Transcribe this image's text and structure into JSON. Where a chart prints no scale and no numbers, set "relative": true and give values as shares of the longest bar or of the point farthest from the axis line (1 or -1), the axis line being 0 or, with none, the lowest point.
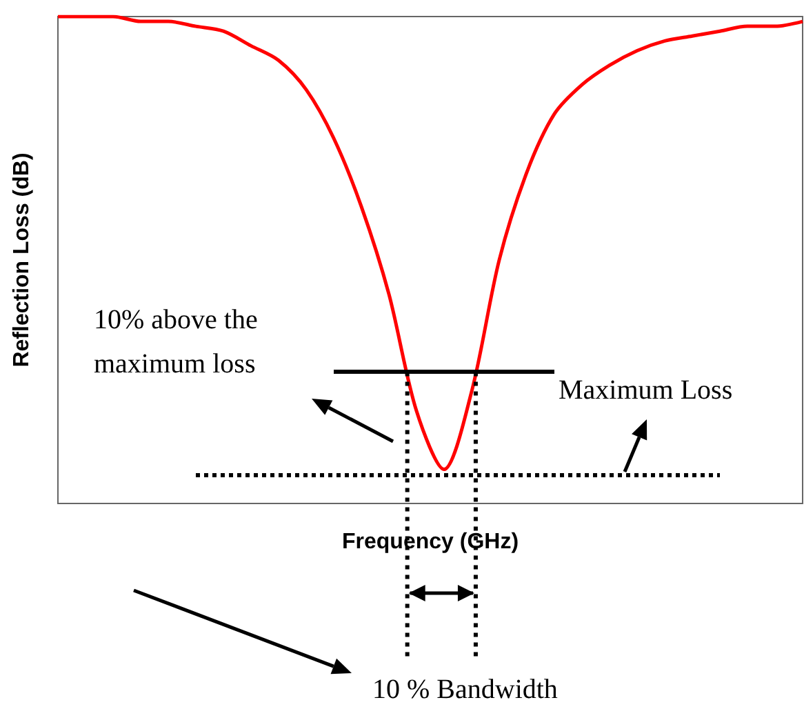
{
  "chart_data": {
    "type": "line",
    "relative": true,
    "xlabel": "Frequency (GHz)",
    "ylabel": "Reflection Loss (dB)",
    "categories": [
      null,
      null,
      null,
      null,
      null,
      null,
      null,
      null,
      null,
      null,
      null,
      null,
      null,
      null,
      null,
      null,
      null,
      null,
      null,
      null,
      null,
      null,
      null,
      null,
      null,
      null,
      null,
      null
    ],
    "series": [
      {
        "color": "#ff0000",
        "values": [
          1,
          1,
          1,
          0.99,
          0.99,
          0.98,
          0.97,
          0.94,
          0.91,
          0.85,
          0.75,
          0.61,
          0.43,
          0.19,
          0.07,
          0.23,
          0.5,
          0.68,
          0.8,
          0.86,
          0.9,
          0.93,
          0.95,
          0.96,
          0.97,
          0.98,
          0.98,
          0.99
        ]
      }
    ],
    "ref_lines": [
      {
        "axis": "y",
        "value": 0.27,
        "color": "#000000",
        "line_style": "solid"
      },
      {
        "axis": "y",
        "value": 0.06,
        "color": "#000000",
        "line_style": "dotted"
      }
    ],
    "annotations": [
      "10% above the\nmaximum loss",
      "Maximum Loss",
      "10 % Bandwidth"
    ],
    "grid": false,
    "tick_labels": false,
    "marker": "none",
    "line_style": "solid"
  }
}
